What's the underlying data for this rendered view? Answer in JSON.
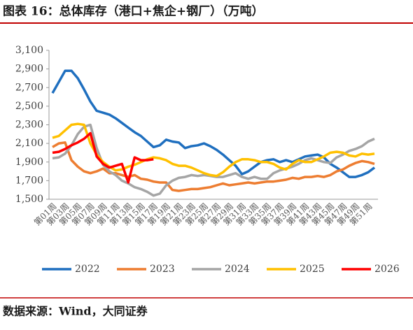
{
  "chart_data": {
    "type": "line",
    "title": "图表 16：总体库存（港口+焦企+钢厂）（万吨）",
    "source": "数据来源：Wind，大同证券",
    "categories": [
      "第01周",
      null,
      "第03周",
      null,
      "第05周",
      null,
      "第07周",
      null,
      "第09周",
      null,
      "第11周",
      null,
      "第13周",
      null,
      "第15周",
      null,
      "第17周",
      null,
      "第19周",
      null,
      "第21周",
      null,
      "第23周",
      null,
      "第25周",
      null,
      "第27周",
      null,
      "第29周",
      null,
      "第31周",
      null,
      "第33周",
      null,
      "第35周",
      null,
      "第37周",
      null,
      "第39周",
      null,
      "第41周",
      null,
      "第43周",
      null,
      "第45周",
      null,
      "第47周",
      null,
      "第49周",
      null,
      "第51周",
      null
    ],
    "series": [
      {
        "name": "2022",
        "color": "#1f6fbf",
        "values": [
          2640,
          2760,
          2880,
          2880,
          2800,
          2680,
          2550,
          2450,
          2430,
          2410,
          2370,
          2320,
          2270,
          2220,
          2180,
          2120,
          2060,
          2080,
          2140,
          2120,
          2110,
          2050,
          2070,
          2080,
          2100,
          2070,
          2030,
          1980,
          1920,
          1860,
          1770,
          1800,
          1850,
          1900,
          1920,
          1930,
          1900,
          1920,
          1900,
          1930,
          1960,
          1970,
          1980,
          1950,
          1880,
          1840,
          1790,
          1740,
          1740,
          1760,
          1790,
          1840
        ]
      },
      {
        "name": "2023",
        "color": "#ed7d31",
        "values": [
          2060,
          2100,
          2110,
          1920,
          1850,
          1800,
          1780,
          1800,
          1830,
          1780,
          1780,
          1760,
          1740,
          1760,
          1720,
          1710,
          1690,
          1680,
          1680,
          1600,
          1590,
          1600,
          1610,
          1610,
          1620,
          1630,
          1650,
          1670,
          1650,
          1660,
          1670,
          1680,
          1670,
          1680,
          1690,
          1690,
          1700,
          1710,
          1730,
          1720,
          1740,
          1740,
          1750,
          1740,
          1760,
          1800,
          1820,
          1860,
          1890,
          1910,
          1900,
          1880
        ]
      },
      {
        "name": "2024",
        "color": "#a5a5a5",
        "values": [
          1940,
          1950,
          1990,
          2080,
          2200,
          2280,
          2300,
          2050,
          1870,
          1800,
          1760,
          1700,
          1670,
          1630,
          1610,
          1580,
          1540,
          1560,
          1650,
          1700,
          1730,
          1740,
          1760,
          1750,
          1760,
          1750,
          1740,
          1740,
          1760,
          1780,
          1740,
          1720,
          1740,
          1720,
          1720,
          1780,
          1810,
          1830,
          1850,
          1880,
          1920,
          1940,
          1920,
          1900,
          1890,
          1950,
          1980,
          2020,
          2040,
          2070,
          2120,
          2150
        ]
      },
      {
        "name": "2025",
        "color": "#ffc000",
        "values": [
          2160,
          2180,
          2240,
          2300,
          2310,
          2300,
          2100,
          1980,
          1900,
          1850,
          1810,
          1820,
          1850,
          1870,
          1900,
          1930,
          1950,
          1940,
          1920,
          1880,
          1860,
          1860,
          1840,
          1810,
          1780,
          1760,
          1750,
          1790,
          1850,
          1900,
          1930,
          1930,
          1920,
          1900,
          1900,
          1880,
          1840,
          1820,
          1880,
          1920,
          1900,
          1900,
          1930,
          1960,
          2000,
          2010,
          2000,
          1970,
          1960,
          1990,
          1980,
          1990
        ]
      },
      {
        "name": "2026",
        "color": "#ff0000",
        "values": [
          2000,
          2010,
          2040,
          2080,
          2110,
          2150,
          2210,
          1960,
          1880,
          1840,
          1860,
          1880,
          1680,
          1950,
          1920,
          1920,
          1930,
          null,
          null,
          null,
          null,
          null,
          null,
          null,
          null,
          null,
          null,
          null,
          null,
          null,
          null,
          null,
          null,
          null,
          null,
          null,
          null,
          null,
          null,
          null,
          null,
          null,
          null,
          null,
          null,
          null,
          null,
          null,
          null,
          null,
          null,
          null
        ]
      }
    ],
    "ylim": [
      1500,
      3100
    ],
    "yticks": [
      {
        "value": 1500,
        "label": "1,500"
      },
      {
        "value": 1700,
        "label": "1,700"
      },
      {
        "value": 1900,
        "label": "1,900"
      },
      {
        "value": 2100,
        "label": "2,100"
      },
      {
        "value": 2300,
        "label": "2,300"
      },
      {
        "value": 2500,
        "label": "2,500"
      },
      {
        "value": 2700,
        "label": "2,700"
      },
      {
        "value": 2900,
        "label": "2,900"
      },
      {
        "value": 3100,
        "label": "3,100"
      }
    ],
    "legend": "bottom"
  }
}
